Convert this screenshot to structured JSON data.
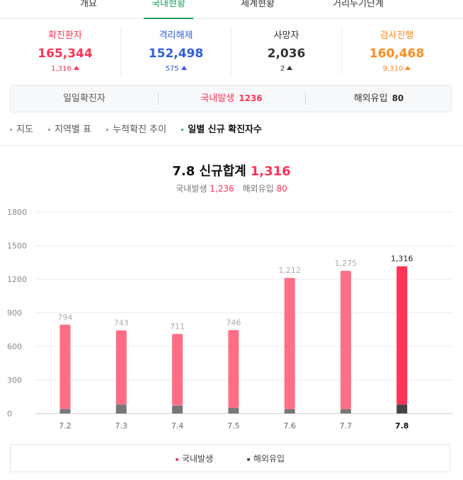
{
  "tabs": [
    {
      "label": "개요"
    },
    {
      "label": "국내현황"
    },
    {
      "label": "세계현황"
    },
    {
      "label": "거리두기단계"
    }
  ],
  "stats": [
    {
      "label": "확진환자",
      "value": "165,344",
      "change": "1,316",
      "color": "#ff3456"
    },
    {
      "label": "격리해제",
      "value": "152,498",
      "change": "575",
      "color": "#2e5fe0"
    },
    {
      "label": "사망자",
      "value": "2,036",
      "change": "2",
      "color": "#333333"
    },
    {
      "label": "검사진행",
      "value": "160,468",
      "change": "9,310",
      "color": "#ff8a1e"
    }
  ],
  "daily": {
    "total_label": "일일확진자",
    "domestic_label": "국내발생",
    "domestic_value": "1236",
    "overseas_label": "해외유입",
    "overseas_value": "80"
  },
  "subnav": [
    {
      "label": "지도"
    },
    {
      "label": "지역별 표"
    },
    {
      "label": "누적확진 추이"
    },
    {
      "label": "일별 신규 확진자수"
    }
  ],
  "colors": {
    "domestic": "#ff6e85",
    "domestic_latest": "#ff3456",
    "overseas": "#777777",
    "overseas_latest": "#444444",
    "accent_green": "#1b9f5a"
  },
  "chart_data": {
    "type": "bar",
    "stacked": true,
    "title_prefix": "7.8 신규합계",
    "title_value": "1,316",
    "subtitle": {
      "domestic_label": "국내발생",
      "domestic_value": "1,236",
      "overseas_label": "해외유입",
      "overseas_value": "80"
    },
    "categories": [
      "7.2",
      "7.3",
      "7.4",
      "7.5",
      "7.6",
      "7.7",
      "7.8"
    ],
    "totals": [
      794,
      743,
      711,
      746,
      1212,
      1275,
      1316
    ],
    "total_labels": [
      "794",
      "743",
      "711",
      "746",
      "1,212",
      "1,275",
      "1,316"
    ],
    "series": [
      {
        "name": "국내발생",
        "values": [
          754,
          663,
          641,
          696,
          1174,
          1236,
          1236
        ]
      },
      {
        "name": "해외유입",
        "values": [
          40,
          80,
          70,
          50,
          38,
          39,
          80
        ]
      }
    ],
    "y_ticks": [
      "0",
      "300",
      "600",
      "900",
      "1200",
      "1500",
      "1800"
    ],
    "ylim": [
      0,
      1800
    ],
    "grid": true,
    "highlight_last": true,
    "legend_position": "bottom"
  }
}
